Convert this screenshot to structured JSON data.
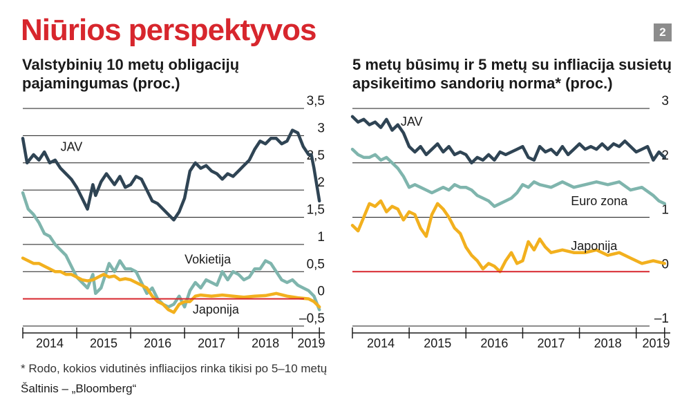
{
  "headline": "Niūrios perspektyvos",
  "page_badge": "2",
  "footnote": "* Rodo, kokios vidutinės infliacijos rinka tikisi po 5–10 metų",
  "source": "Šaltinis – „Bloomberg“",
  "colors": {
    "headline": "#d7262d",
    "zero_line": "#d7262d",
    "jav": "#2f4454",
    "vokietija_euro": "#7fb5ad",
    "japonija": "#f2b01e",
    "grid": "#1a1a1a"
  },
  "chart_data": [
    {
      "type": "line",
      "title_lines": [
        "Valstybinių 10 metų obligacijų",
        "pajamingumas (proc.)"
      ],
      "xlabel": "",
      "ylabel": "",
      "ylim": [
        -0.5,
        3.5
      ],
      "yticks": [
        -0.5,
        0,
        0.5,
        1,
        1.5,
        2,
        2.5,
        3,
        3.5
      ],
      "ytick_labels": [
        "–0,5",
        "0",
        "0,5",
        "1",
        "1,5",
        "2",
        "2,5",
        "3",
        "3,5"
      ],
      "grid": true,
      "xlim": [
        2013.7,
        2019.3
      ],
      "x_labels": [
        "2014",
        "2015",
        "2016",
        "2017",
        "2018",
        "2019"
      ],
      "x_label_positions": [
        2014.2,
        2015.2,
        2016.2,
        2017.2,
        2018.2,
        2019.05
      ],
      "x_ticks": [
        2013.7,
        2014.7,
        2015.7,
        2016.7,
        2017.7,
        2018.7,
        2019.2
      ],
      "series": [
        {
          "name": "JAV",
          "color_key": "jav",
          "x": [
            2013.7,
            2013.78,
            2013.9,
            2014.0,
            2014.1,
            2014.2,
            2014.3,
            2014.4,
            2014.5,
            2014.6,
            2014.7,
            2014.8,
            2014.9,
            2015.0,
            2015.05,
            2015.15,
            2015.25,
            2015.4,
            2015.5,
            2015.6,
            2015.7,
            2015.8,
            2015.9,
            2016.0,
            2016.1,
            2016.2,
            2016.3,
            2016.4,
            2016.5,
            2016.6,
            2016.7,
            2016.8,
            2016.9,
            2017.0,
            2017.1,
            2017.2,
            2017.3,
            2017.4,
            2017.5,
            2017.6,
            2017.7,
            2017.8,
            2017.9,
            2018.0,
            2018.1,
            2018.2,
            2018.3,
            2018.4,
            2018.5,
            2018.6,
            2018.7,
            2018.8,
            2018.9,
            2019.0,
            2019.05,
            2019.1,
            2019.2
          ],
          "values": [
            2.95,
            2.5,
            2.65,
            2.55,
            2.7,
            2.5,
            2.55,
            2.4,
            2.3,
            2.2,
            2.05,
            1.85,
            1.65,
            2.1,
            1.9,
            2.15,
            2.3,
            2.1,
            2.25,
            2.05,
            2.1,
            2.25,
            2.2,
            2.0,
            1.8,
            1.75,
            1.65,
            1.55,
            1.45,
            1.6,
            1.85,
            2.35,
            2.5,
            2.4,
            2.45,
            2.35,
            2.3,
            2.2,
            2.3,
            2.25,
            2.35,
            2.45,
            2.55,
            2.75,
            2.9,
            2.85,
            2.95,
            2.95,
            2.85,
            2.9,
            3.1,
            3.05,
            2.8,
            2.65,
            2.65,
            2.4,
            1.8
          ],
          "label_x": 2014.4,
          "label_y": 2.72
        },
        {
          "name": "Vokietija",
          "color_key": "vokietija_euro",
          "x": [
            2013.7,
            2013.8,
            2013.9,
            2014.0,
            2014.1,
            2014.2,
            2014.3,
            2014.4,
            2014.5,
            2014.6,
            2014.7,
            2014.8,
            2014.9,
            2015.0,
            2015.05,
            2015.15,
            2015.3,
            2015.4,
            2015.5,
            2015.6,
            2015.7,
            2015.8,
            2015.9,
            2016.0,
            2016.1,
            2016.2,
            2016.3,
            2016.4,
            2016.5,
            2016.6,
            2016.7,
            2016.8,
            2016.9,
            2017.0,
            2017.1,
            2017.2,
            2017.3,
            2017.4,
            2017.5,
            2017.6,
            2017.7,
            2017.8,
            2017.9,
            2018.0,
            2018.1,
            2018.2,
            2018.3,
            2018.4,
            2018.5,
            2018.6,
            2018.7,
            2018.8,
            2018.9,
            2019.0,
            2019.1,
            2019.2
          ],
          "values": [
            1.95,
            1.65,
            1.55,
            1.4,
            1.2,
            1.15,
            1.0,
            0.9,
            0.8,
            0.6,
            0.4,
            0.3,
            0.2,
            0.45,
            0.1,
            0.2,
            0.65,
            0.5,
            0.7,
            0.55,
            0.55,
            0.5,
            0.3,
            0.1,
            0.2,
            0.0,
            -0.1,
            -0.15,
            -0.1,
            0.05,
            -0.15,
            0.15,
            0.3,
            0.2,
            0.35,
            0.3,
            0.25,
            0.5,
            0.35,
            0.5,
            0.45,
            0.35,
            0.4,
            0.55,
            0.55,
            0.7,
            0.65,
            0.5,
            0.35,
            0.3,
            0.35,
            0.25,
            0.2,
            0.15,
            0.05,
            -0.2
          ],
          "label_x": 2016.7,
          "label_y": 0.65
        },
        {
          "name": "Japonija",
          "color_key": "japonija",
          "x": [
            2013.7,
            2013.8,
            2013.9,
            2014.0,
            2014.1,
            2014.2,
            2014.3,
            2014.4,
            2014.5,
            2014.6,
            2014.7,
            2014.8,
            2014.9,
            2015.0,
            2015.1,
            2015.2,
            2015.3,
            2015.4,
            2015.5,
            2015.6,
            2015.7,
            2015.8,
            2015.9,
            2016.0,
            2016.1,
            2016.2,
            2016.3,
            2016.4,
            2016.5,
            2016.6,
            2016.7,
            2016.8,
            2016.9,
            2017.0,
            2017.2,
            2017.4,
            2017.6,
            2017.8,
            2018.0,
            2018.2,
            2018.4,
            2018.6,
            2018.8,
            2019.0,
            2019.1,
            2019.2
          ],
          "values": [
            0.75,
            0.7,
            0.65,
            0.65,
            0.6,
            0.55,
            0.5,
            0.5,
            0.45,
            0.45,
            0.4,
            0.35,
            0.33,
            0.35,
            0.4,
            0.45,
            0.4,
            0.42,
            0.35,
            0.37,
            0.35,
            0.3,
            0.25,
            0.2,
            0.05,
            -0.05,
            -0.1,
            -0.2,
            -0.25,
            -0.1,
            -0.05,
            -0.05,
            0.05,
            0.07,
            0.05,
            0.07,
            0.05,
            0.03,
            0.05,
            0.06,
            0.1,
            0.05,
            0.02,
            0.0,
            -0.05,
            -0.15
          ],
          "label_x": 2016.85,
          "label_y": -0.27
        }
      ]
    },
    {
      "type": "line",
      "title_lines": [
        "5 metų būsimų ir 5 metų su infliacija susietų",
        "apsikeitimo sandorių norma* (proc.)"
      ],
      "xlabel": "",
      "ylabel": "",
      "ylim": [
        -1,
        3
      ],
      "yticks": [
        -1,
        0,
        1,
        2,
        3
      ],
      "ytick_labels": [
        "–1",
        "0",
        "1",
        "2",
        "3"
      ],
      "grid": true,
      "xlim": [
        2013.7,
        2019.3
      ],
      "x_labels": [
        "2014",
        "2015",
        "2016",
        "2017",
        "2018",
        "2019"
      ],
      "x_label_positions": [
        2014.2,
        2015.2,
        2016.2,
        2017.2,
        2018.2,
        2019.05
      ],
      "x_ticks": [
        2013.7,
        2014.7,
        2015.7,
        2016.7,
        2017.7,
        2018.7,
        2019.2
      ],
      "series": [
        {
          "name": "JAV",
          "color_key": "jav",
          "x": [
            2013.7,
            2013.8,
            2013.9,
            2014.0,
            2014.1,
            2014.2,
            2014.3,
            2014.4,
            2014.5,
            2014.6,
            2014.7,
            2014.8,
            2014.9,
            2015.0,
            2015.1,
            2015.2,
            2015.3,
            2015.4,
            2015.5,
            2015.6,
            2015.7,
            2015.8,
            2015.9,
            2016.0,
            2016.1,
            2016.2,
            2016.3,
            2016.4,
            2016.5,
            2016.6,
            2016.7,
            2016.8,
            2016.9,
            2017.0,
            2017.1,
            2017.2,
            2017.3,
            2017.4,
            2017.5,
            2017.6,
            2017.7,
            2017.8,
            2017.9,
            2018.0,
            2018.1,
            2018.2,
            2018.3,
            2018.4,
            2018.5,
            2018.6,
            2018.7,
            2018.8,
            2018.9,
            2019.0,
            2019.1,
            2019.2
          ],
          "values": [
            2.85,
            2.75,
            2.8,
            2.7,
            2.75,
            2.65,
            2.8,
            2.6,
            2.7,
            2.55,
            2.3,
            2.2,
            2.3,
            2.15,
            2.25,
            2.35,
            2.2,
            2.3,
            2.15,
            2.2,
            2.15,
            2.0,
            2.1,
            2.05,
            2.15,
            2.05,
            2.2,
            2.15,
            2.2,
            2.25,
            2.3,
            2.1,
            2.05,
            2.3,
            2.2,
            2.25,
            2.15,
            2.3,
            2.15,
            2.25,
            2.35,
            2.25,
            2.3,
            2.25,
            2.35,
            2.25,
            2.35,
            2.3,
            2.4,
            2.3,
            2.2,
            2.25,
            2.3,
            2.05,
            2.2,
            2.1
          ],
          "label_x": 2014.55,
          "label_y": 2.68
        },
        {
          "name": "Euro zona",
          "color_key": "vokietija_euro",
          "x": [
            2013.7,
            2013.8,
            2013.9,
            2014.0,
            2014.1,
            2014.2,
            2014.3,
            2014.4,
            2014.5,
            2014.6,
            2014.7,
            2014.8,
            2014.9,
            2015.0,
            2015.1,
            2015.2,
            2015.3,
            2015.4,
            2015.5,
            2015.6,
            2015.7,
            2015.8,
            2015.9,
            2016.0,
            2016.1,
            2016.2,
            2016.3,
            2016.4,
            2016.5,
            2016.6,
            2016.7,
            2016.8,
            2016.9,
            2017.0,
            2017.2,
            2017.4,
            2017.6,
            2017.8,
            2018.0,
            2018.2,
            2018.4,
            2018.6,
            2018.8,
            2019.0,
            2019.1,
            2019.2
          ],
          "values": [
            2.25,
            2.15,
            2.1,
            2.1,
            2.15,
            2.05,
            2.1,
            2.0,
            1.9,
            1.75,
            1.55,
            1.6,
            1.55,
            1.5,
            1.45,
            1.5,
            1.55,
            1.5,
            1.6,
            1.55,
            1.55,
            1.5,
            1.4,
            1.35,
            1.3,
            1.2,
            1.25,
            1.3,
            1.35,
            1.45,
            1.6,
            1.55,
            1.65,
            1.6,
            1.55,
            1.65,
            1.55,
            1.6,
            1.65,
            1.6,
            1.65,
            1.5,
            1.55,
            1.4,
            1.3,
            1.25
          ],
          "label_x": 2017.55,
          "label_y": 1.22
        },
        {
          "name": "Japonija",
          "color_key": "japonija",
          "x": [
            2013.7,
            2013.8,
            2013.9,
            2014.0,
            2014.1,
            2014.2,
            2014.3,
            2014.4,
            2014.5,
            2014.6,
            2014.7,
            2014.8,
            2014.9,
            2015.0,
            2015.1,
            2015.2,
            2015.3,
            2015.4,
            2015.5,
            2015.6,
            2015.7,
            2015.8,
            2015.9,
            2016.0,
            2016.1,
            2016.2,
            2016.3,
            2016.4,
            2016.5,
            2016.6,
            2016.7,
            2016.8,
            2016.9,
            2017.0,
            2017.1,
            2017.2,
            2017.4,
            2017.6,
            2017.8,
            2018.0,
            2018.2,
            2018.4,
            2018.6,
            2018.8,
            2019.0,
            2019.2
          ],
          "values": [
            0.85,
            0.75,
            1.0,
            1.25,
            1.2,
            1.3,
            1.1,
            1.2,
            1.15,
            0.95,
            1.1,
            1.05,
            0.8,
            0.65,
            1.05,
            1.25,
            1.15,
            1.0,
            0.8,
            0.7,
            0.45,
            0.3,
            0.2,
            0.05,
            0.15,
            0.1,
            0.0,
            0.2,
            0.35,
            0.15,
            0.2,
            0.55,
            0.4,
            0.6,
            0.45,
            0.35,
            0.4,
            0.35,
            0.35,
            0.4,
            0.3,
            0.35,
            0.25,
            0.15,
            0.2,
            0.15
          ],
          "label_x": 2017.55,
          "label_y": 0.4
        }
      ]
    }
  ]
}
